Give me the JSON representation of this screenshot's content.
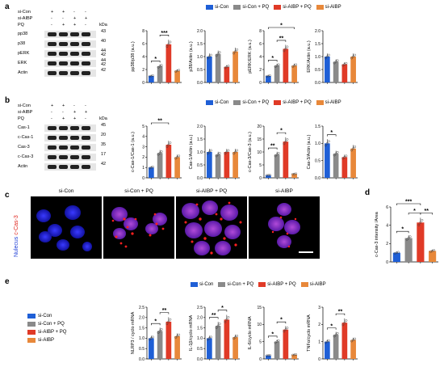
{
  "colors": {
    "si_con": "#1f5fd6",
    "si_con_pq": "#8a8a8a",
    "si_aibp_pq": "#e03a27",
    "si_aibp": "#e8883a"
  },
  "legend": [
    "si-Con",
    "si-Con + PQ",
    "si-AIBP + PQ",
    "si-AIBP"
  ],
  "panel_labels": {
    "a": "a",
    "b": "b",
    "c": "c",
    "d": "d",
    "e": "e"
  },
  "blot_a": {
    "conditions": [
      {
        "label": "si-Con",
        "marks": [
          "+",
          "+",
          "-",
          "-"
        ]
      },
      {
        "label": "si-AIBP",
        "marks": [
          "-",
          "-",
          "+",
          "+"
        ]
      },
      {
        "label": "PQ",
        "marks": [
          "-",
          "+",
          "+",
          "-"
        ]
      }
    ],
    "kda_label": "kDa",
    "rows": [
      {
        "name": "pp38",
        "kda": "43"
      },
      {
        "name": "p38",
        "kda": "40"
      },
      {
        "name": "pERK",
        "kda": "44\n42"
      },
      {
        "name": "ERK",
        "kda": "44\n42"
      },
      {
        "name": "Actin",
        "kda": "42"
      }
    ]
  },
  "blot_b": {
    "conditions": [
      {
        "label": "si-Con",
        "marks": [
          "+",
          "+",
          "-",
          "-"
        ]
      },
      {
        "label": "si-AIBP",
        "marks": [
          "-",
          "-",
          "+",
          "+"
        ]
      },
      {
        "label": "PQ",
        "marks": [
          "-",
          "+",
          "+",
          "-"
        ]
      }
    ],
    "kda_label": "kDa",
    "rows": [
      {
        "name": "Cas-1",
        "kda": "45"
      },
      {
        "name": "c-Cas-1",
        "kda": "20"
      },
      {
        "name": "Cas-3",
        "kda": "35"
      },
      {
        "name": "c-Cas-3",
        "kda": "17"
      },
      {
        "name": "Actin",
        "kda": "42"
      }
    ]
  },
  "panel_c": {
    "titles": [
      "si-Con",
      "si-Con + PQ",
      "si-AIBP + PQ",
      "si-AIBP"
    ],
    "side_label_1": "Nulecus",
    "side_label_2": "c-Cas-3"
  },
  "chart_data": [
    {
      "type": "bar",
      "ylabel": "pp38/p38 (a.u.)",
      "ylim": [
        0,
        8
      ],
      "yticks": [
        0,
        2,
        4,
        6,
        8
      ],
      "values": [
        1.0,
        2.5,
        5.9,
        1.8
      ],
      "sig": [
        {
          "a": 0,
          "b": 1,
          "t": "*"
        },
        {
          "a": 1,
          "b": 2,
          "t": "***"
        }
      ]
    },
    {
      "type": "bar",
      "ylabel": "p38/Actin (a.u.)",
      "ylim": [
        0,
        2.0
      ],
      "yticks": [
        0.0,
        0.5,
        1.0,
        1.5,
        2.0
      ],
      "values": [
        1.0,
        1.1,
        0.6,
        1.2
      ],
      "sig": []
    },
    {
      "type": "bar",
      "ylabel": "pERK/ERK (a.u.)",
      "ylim": [
        0,
        8
      ],
      "yticks": [
        0,
        2,
        4,
        6,
        8
      ],
      "values": [
        1.0,
        2.6,
        5.2,
        2.6
      ],
      "sig": [
        {
          "a": 0,
          "b": 1,
          "t": "*"
        },
        {
          "a": 1,
          "b": 2,
          "t": "**"
        },
        {
          "a": 0,
          "b": 3,
          "t": "*"
        }
      ]
    },
    {
      "type": "bar",
      "ylabel": "ERK/Actin (a.u.)",
      "ylim": [
        0,
        2.0
      ],
      "yticks": [
        0.0,
        0.5,
        1.0,
        1.5,
        2.0
      ],
      "values": [
        1.0,
        0.8,
        0.7,
        1.0
      ],
      "sig": []
    },
    {
      "type": "bar",
      "ylabel": "c-Cas-1/Cas-1 (a.u.)",
      "ylim": [
        0,
        5
      ],
      "yticks": [
        0,
        1,
        2,
        3,
        4,
        5
      ],
      "values": [
        1.0,
        2.4,
        3.2,
        2.0
      ],
      "sig": [
        {
          "a": 0,
          "b": 2,
          "t": "**"
        }
      ]
    },
    {
      "type": "bar",
      "ylabel": "Cas-1/Actin (a.u.)",
      "ylim": [
        0,
        2.0
      ],
      "yticks": [
        0.0,
        0.5,
        1.0,
        1.5,
        2.0
      ],
      "values": [
        1.0,
        0.9,
        1.0,
        1.0
      ],
      "sig": []
    },
    {
      "type": "bar",
      "ylabel": "c-Cas-3/Cas-3 (a.u.)",
      "ylim": [
        0,
        20
      ],
      "yticks": [
        0,
        5,
        10,
        15,
        20
      ],
      "values": [
        1.0,
        9.0,
        14.0,
        1.5
      ],
      "sig": [
        {
          "a": 0,
          "b": 1,
          "t": "**"
        },
        {
          "a": 1,
          "b": 2,
          "t": "*"
        }
      ]
    },
    {
      "type": "bar",
      "ylabel": "Cas-3/Actin (a.u.)",
      "ylim": [
        0,
        1.5
      ],
      "yticks": [
        0.0,
        0.5,
        1.0,
        1.5
      ],
      "values": [
        1.0,
        0.7,
        0.6,
        0.85
      ],
      "sig": [
        {
          "a": 0,
          "b": 1,
          "t": "*"
        }
      ]
    },
    {
      "type": "bar",
      "ylabel": "c-Cas-3 intensity /Area",
      "ylim": [
        0,
        6
      ],
      "yticks": [
        0,
        2,
        4,
        6
      ],
      "values": [
        1.0,
        2.6,
        4.3,
        1.2
      ],
      "sig": [
        {
          "a": 0,
          "b": 1,
          "t": "*"
        },
        {
          "a": 1,
          "b": 2,
          "t": "*"
        },
        {
          "a": 2,
          "b": 3,
          "t": "**"
        },
        {
          "a": 0,
          "b": 2,
          "t": "***"
        }
      ]
    },
    {
      "type": "bar",
      "ylabel": "NLRP3 / cyclo mRNA",
      "ylim": [
        0,
        2.5
      ],
      "yticks": [
        0.0,
        0.5,
        1.0,
        1.5,
        2.0,
        2.5
      ],
      "values": [
        1.0,
        1.35,
        1.8,
        1.1
      ],
      "sig": [
        {
          "a": 0,
          "b": 1,
          "t": "*"
        },
        {
          "a": 1,
          "b": 2,
          "t": "**"
        }
      ]
    },
    {
      "type": "bar",
      "ylabel": "IL-1β/cyclo mRNA",
      "ylim": [
        0,
        2.5
      ],
      "yticks": [
        0.0,
        0.5,
        1.0,
        1.5,
        2.0,
        2.5
      ],
      "values": [
        1.0,
        1.6,
        1.9,
        1.05
      ],
      "sig": [
        {
          "a": 0,
          "b": 1,
          "t": "**"
        },
        {
          "a": 1,
          "b": 2,
          "t": "*"
        }
      ]
    },
    {
      "type": "bar",
      "ylabel": "IL-6/cyclo mRNA",
      "ylim": [
        0,
        15
      ],
      "yticks": [
        0,
        5,
        10,
        15
      ],
      "values": [
        1.0,
        5.0,
        8.5,
        1.2
      ],
      "sig": [
        {
          "a": 0,
          "b": 1,
          "t": "*"
        },
        {
          "a": 1,
          "b": 2,
          "t": "*"
        }
      ]
    },
    {
      "type": "bar",
      "ylabel": "TNFα/cyclo mRNA",
      "ylim": [
        0,
        3
      ],
      "yticks": [
        0,
        1,
        2,
        3
      ],
      "values": [
        1.0,
        1.4,
        2.1,
        1.1
      ],
      "sig": [
        {
          "a": 0,
          "b": 1,
          "t": "*"
        },
        {
          "a": 1,
          "b": 2,
          "t": "**"
        }
      ]
    }
  ]
}
